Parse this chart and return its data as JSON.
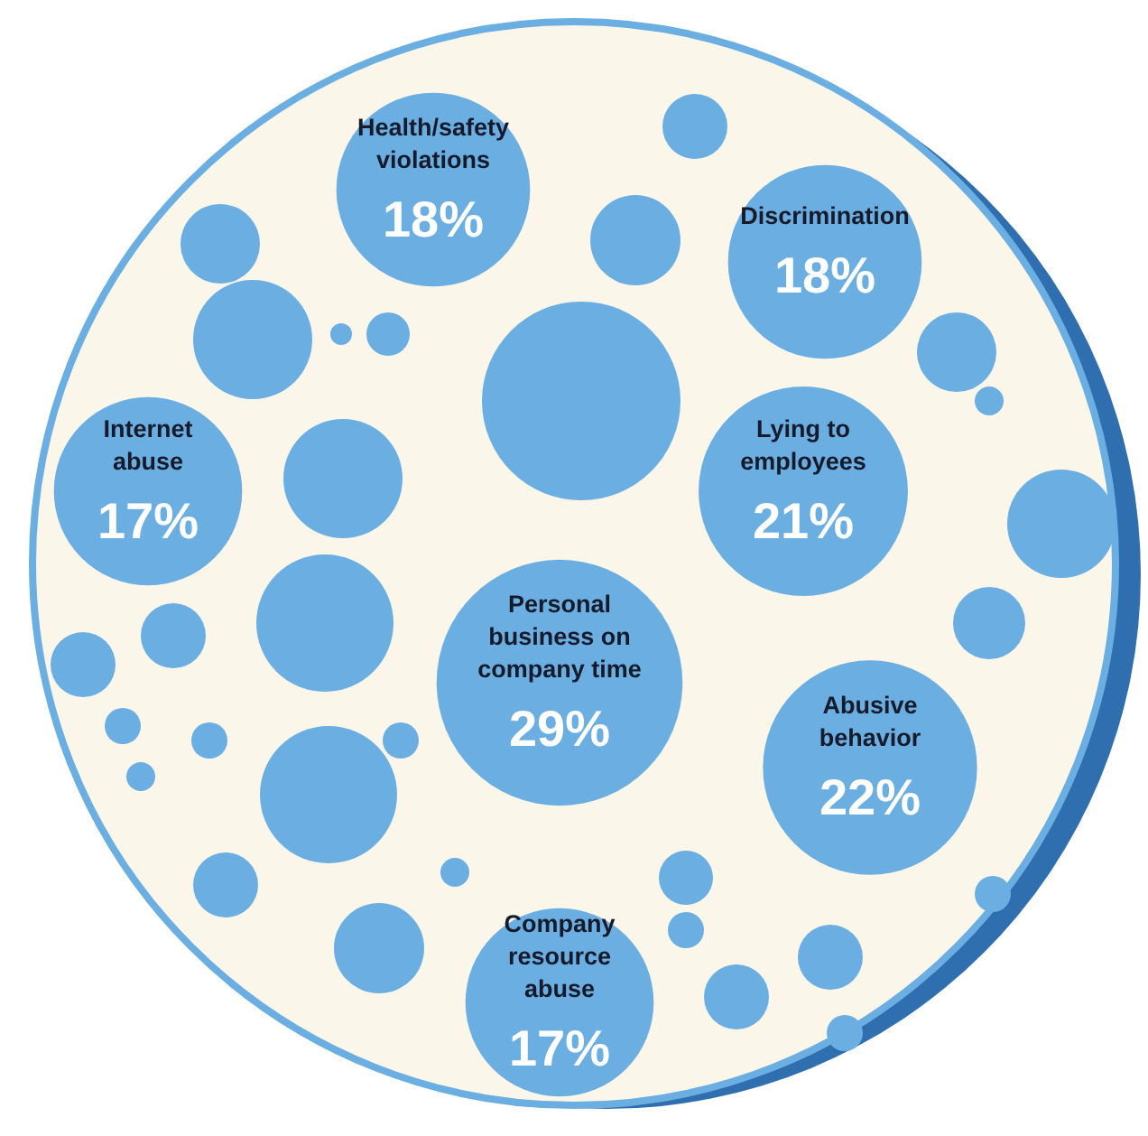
{
  "chart_data": {
    "type": "other",
    "categories": [
      "Health/safety violations",
      "Discrimination",
      "Internet abuse",
      "Lying to employees",
      "Personal business on company time",
      "Abusive behavior",
      "Company resource abuse"
    ],
    "values": [
      18,
      18,
      17,
      21,
      29,
      22,
      17
    ],
    "value_labels": [
      "18%",
      "18%",
      "17%",
      "21%",
      "29%",
      "22%",
      "17%"
    ],
    "colors": [
      "#6aaee2",
      "#6aaee2",
      "#6aaee2",
      "#6aaee2",
      "#6aaee2",
      "#6aaee2",
      "#6aaee2"
    ],
    "data_labels": true
  }
}
